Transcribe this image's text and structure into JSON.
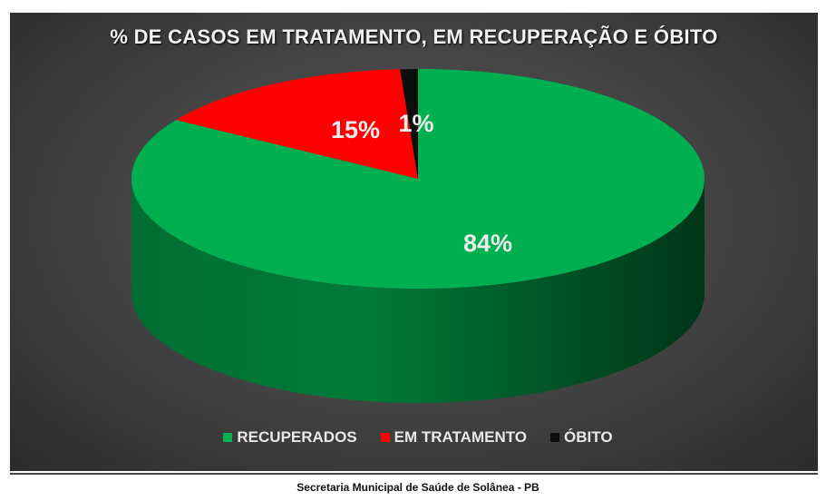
{
  "chart_data": {
    "type": "pie",
    "style": "3d",
    "title": "% DE CASOS EM TRATAMENTO, EM RECUPERAÇÃO E ÓBITO",
    "slices": [
      {
        "name": "RECUPERADOS",
        "value": 84,
        "label": "84%",
        "color": "#00b050"
      },
      {
        "name": "EM TRATAMENTO",
        "value": 15,
        "label": "15%",
        "color": "#ff0000"
      },
      {
        "name": "ÓBITO",
        "value": 1,
        "label": "1%",
        "color": "#0d0d0d"
      }
    ],
    "legend_position": "bottom"
  },
  "footer": "Secretaria Municipal de Saúde de Solânea - PB"
}
